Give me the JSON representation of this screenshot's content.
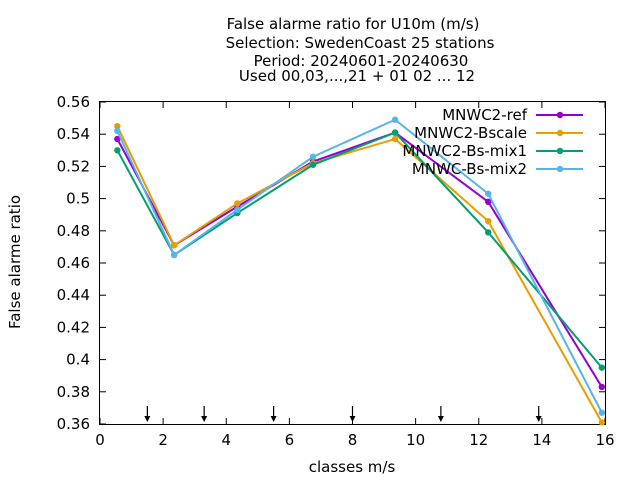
{
  "chart_data": {
    "type": "line",
    "title_lines": [
      "False alarme ratio  for U10m (m/s)",
      "Selection: SwedenCoast      25 stations",
      "Period: 20240601-20240630",
      "Used 00,03,...,21 + 01 02 ... 12"
    ],
    "xlabel": "classes m/s",
    "ylabel": "False alarme ratio",
    "xlim": [
      0,
      16
    ],
    "ylim": [
      0.36,
      0.56
    ],
    "xticks": [
      0,
      2,
      4,
      6,
      8,
      10,
      12,
      14,
      16
    ],
    "yticks": [
      0.36,
      0.38,
      0.4,
      0.42,
      0.44,
      0.46,
      0.48,
      0.5,
      0.52,
      0.54,
      0.56
    ],
    "ytick_labels": [
      "0.36",
      "0.38",
      "0.4",
      "0.42",
      "0.44",
      "0.46",
      "0.48",
      "0.5",
      "0.52",
      "0.54",
      "0.56"
    ],
    "class_markers_x": [
      1.5,
      3.3,
      5.5,
      8.0,
      10.8,
      13.9
    ],
    "legend_position": "top-right",
    "grid": false,
    "series": [
      {
        "name": "MNWC2-ref",
        "color": "#9400d3",
        "x": [
          0.55,
          2.35,
          4.35,
          6.75,
          9.35,
          12.3,
          15.9
        ],
        "y": [
          0.537,
          0.471,
          0.495,
          0.523,
          0.541,
          0.498,
          0.383
        ]
      },
      {
        "name": "MNWC2-Bscale",
        "color": "#e69f00",
        "x": [
          0.55,
          2.35,
          4.35,
          6.75,
          9.35,
          12.3,
          15.9
        ],
        "y": [
          0.545,
          0.471,
          0.497,
          0.522,
          0.537,
          0.486,
          0.361
        ]
      },
      {
        "name": "MNWC2-Bs-mix1",
        "color": "#009e73",
        "x": [
          0.55,
          2.35,
          4.35,
          6.75,
          9.35,
          12.3,
          15.9
        ],
        "y": [
          0.53,
          0.465,
          0.491,
          0.521,
          0.541,
          0.479,
          0.395
        ]
      },
      {
        "name": "MNWC-Bs-mix2",
        "color": "#56b4e9",
        "x": [
          0.55,
          2.35,
          4.35,
          6.75,
          9.35,
          12.3,
          15.9
        ],
        "y": [
          0.542,
          0.465,
          0.493,
          0.526,
          0.549,
          0.503,
          0.367
        ]
      }
    ]
  }
}
